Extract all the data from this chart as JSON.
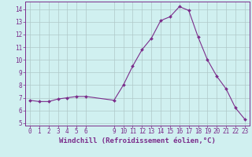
{
  "x": [
    0,
    1,
    2,
    3,
    4,
    5,
    6,
    9,
    10,
    11,
    12,
    13,
    14,
    15,
    16,
    17,
    18,
    19,
    20,
    21,
    22,
    23
  ],
  "y": [
    6.8,
    6.7,
    6.7,
    6.9,
    7.0,
    7.1,
    7.1,
    6.8,
    8.0,
    9.5,
    10.8,
    11.7,
    13.1,
    13.4,
    14.2,
    13.9,
    11.8,
    10.0,
    8.7,
    7.7,
    6.2,
    5.3
  ],
  "line_color": "#7b2d8b",
  "marker_color": "#7b2d8b",
  "bg_color": "#d0f0f0",
  "grid_color": "#b0c8c8",
  "xlabel": "Windchill (Refroidissement éolien,°C)",
  "xlim": [
    -0.5,
    23.5
  ],
  "ylim": [
    4.8,
    14.6
  ],
  "yticks": [
    5,
    6,
    7,
    8,
    9,
    10,
    11,
    12,
    13,
    14
  ],
  "xticks": [
    0,
    1,
    2,
    3,
    4,
    5,
    6,
    9,
    10,
    11,
    12,
    13,
    14,
    15,
    16,
    17,
    18,
    19,
    20,
    21,
    22,
    23
  ],
  "tick_color": "#7b2d8b",
  "tick_fontsize": 5.5,
  "xlabel_fontsize": 6.5
}
